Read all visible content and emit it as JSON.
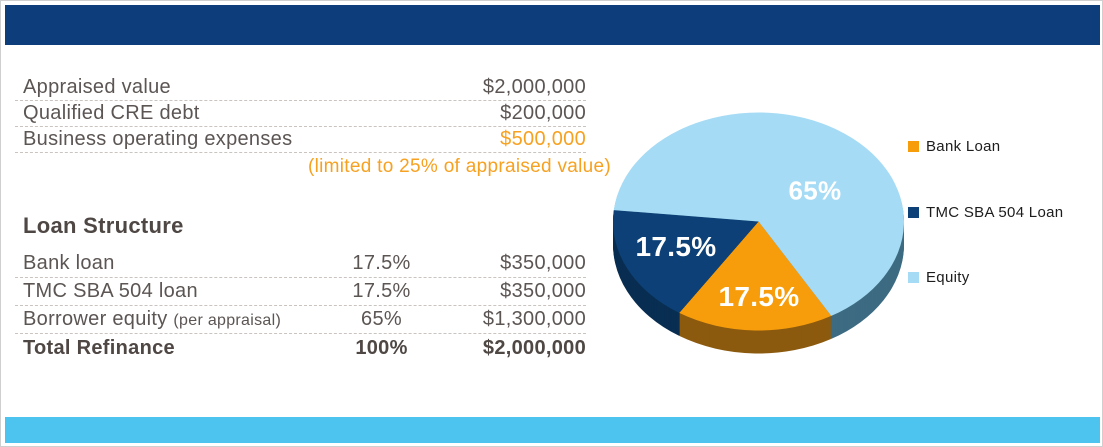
{
  "colors": {
    "header_bar": "#0d3e7b",
    "footer_bar": "#4dc4f0",
    "text_gray": "#5b5553",
    "text_dark": "#4e4744",
    "accent_orange": "#f7a120",
    "divider": "#c9c4c0",
    "legend_text": "#1d1d1d",
    "label_white": "#ffffff"
  },
  "summary_table": {
    "rows": [
      {
        "label": "Appraised value",
        "value": "$2,000,000"
      },
      {
        "label": "Qualified CRE debt",
        "value": "$200,000"
      },
      {
        "label": "Business operating expenses",
        "value": "$500,000"
      }
    ],
    "note": "(limited to 25% of appraised value)"
  },
  "loan_structure": {
    "heading": "Loan Structure",
    "rows": [
      {
        "label": "Bank loan",
        "label_suffix": "",
        "percent": "17.5%",
        "value": "$350,000"
      },
      {
        "label": "TMC SBA 504 loan",
        "label_suffix": "",
        "percent": "17.5%",
        "value": "$350,000"
      },
      {
        "label": "Borrower equity",
        "label_suffix": "(per appraisal)",
        "percent": "65%",
        "value": "$1,300,000"
      },
      {
        "label": "Total Refinance",
        "label_suffix": "",
        "percent": "100%",
        "value": "$2,000,000"
      }
    ]
  },
  "chart_data": {
    "type": "pie",
    "effect": "3d",
    "title": "",
    "unit": "percent",
    "rotation": "clockwise",
    "start_angle_deg": 150,
    "legend_position": "right",
    "slices": [
      {
        "name": "Bank Loan",
        "value": 17.5,
        "label": "17.5%",
        "color": "#f79d0c",
        "side_color": "#8c5a0e"
      },
      {
        "name": "TMC SBA 504 Loan",
        "value": 17.5,
        "label": "17.5%",
        "color": "#0c4076",
        "side_color": "#092e52"
      },
      {
        "name": "Equity",
        "value": 65,
        "label": "65%",
        "color": "#a5dbf5",
        "side_color": "#3d6b82"
      }
    ]
  }
}
